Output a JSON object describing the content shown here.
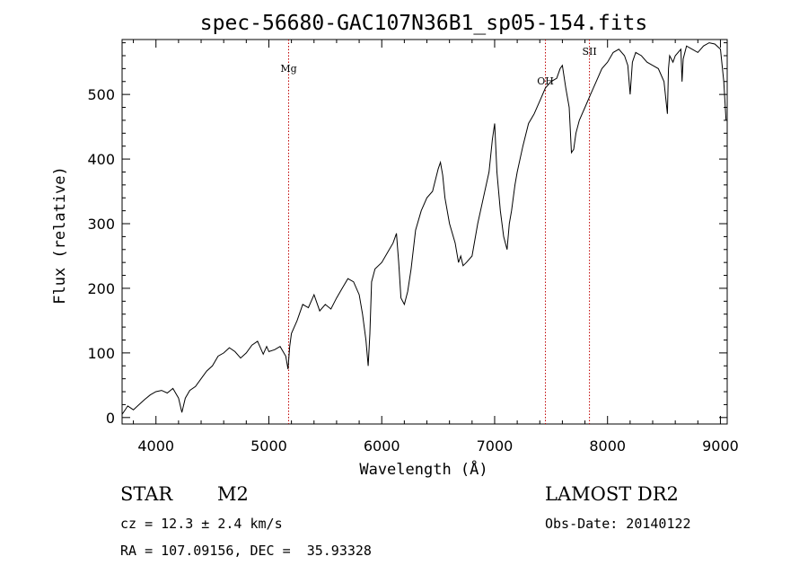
{
  "chart_data": {
    "type": "line",
    "title": "spec-56680-GAC107N36B1_sp05-154.fits",
    "xlabel": "Wavelength (Å)",
    "ylabel": "Flux (relative)",
    "xlim": [
      3700,
      9060
    ],
    "ylim": [
      -10,
      585
    ],
    "xticks": [
      4000,
      5000,
      6000,
      7000,
      8000,
      9000
    ],
    "yticks": [
      0,
      100,
      200,
      300,
      400,
      500
    ],
    "grid": false,
    "line_markers": [
      {
        "label": "Mg",
        "x": 5175
      },
      {
        "label": "OH",
        "x": 7450
      },
      {
        "label": "SII",
        "x": 7840
      }
    ],
    "series": [
      {
        "x": [
          3700,
          3720,
          3750,
          3800,
          3850,
          3900,
          3950,
          4000,
          4050,
          4100,
          4150,
          4200,
          4230,
          4260,
          4300,
          4350,
          4400,
          4450,
          4500,
          4550,
          4600,
          4650,
          4700,
          4750,
          4800,
          4850,
          4900,
          4950,
          4980,
          5000,
          5050,
          5100,
          5150,
          5170,
          5185,
          5200,
          5250,
          5300,
          5350,
          5400,
          5450,
          5500,
          5550,
          5600,
          5650,
          5700,
          5750,
          5800,
          5830,
          5860,
          5880,
          5895,
          5910,
          5940,
          6000,
          6050,
          6100,
          6130,
          6150,
          6170,
          6200,
          6230,
          6260,
          6300,
          6350,
          6400,
          6450,
          6500,
          6520,
          6540,
          6560,
          6600,
          6650,
          6680,
          6700,
          6720,
          6750,
          6800,
          6850,
          6900,
          6950,
          6980,
          7000,
          7020,
          7050,
          7080,
          7110,
          7130,
          7150,
          7180,
          7200,
          7250,
          7300,
          7350,
          7400,
          7450,
          7500,
          7550,
          7580,
          7600,
          7630,
          7660,
          7680,
          7700,
          7720,
          7750,
          7800,
          7850,
          7900,
          7950,
          8000,
          8050,
          8100,
          8150,
          8180,
          8200,
          8220,
          8250,
          8300,
          8350,
          8400,
          8450,
          8500,
          8530,
          8540,
          8550,
          8580,
          8600,
          8650,
          8660,
          8670,
          8700,
          8750,
          8800,
          8850,
          8900,
          8950,
          9000,
          9030,
          9050
        ],
        "values": [
          5,
          10,
          18,
          12,
          20,
          28,
          35,
          40,
          42,
          38,
          45,
          30,
          8,
          30,
          42,
          48,
          60,
          72,
          80,
          95,
          100,
          108,
          102,
          92,
          100,
          112,
          118,
          98,
          110,
          102,
          105,
          110,
          95,
          75,
          110,
          130,
          150,
          175,
          170,
          190,
          165,
          175,
          168,
          185,
          200,
          215,
          210,
          190,
          160,
          120,
          80,
          130,
          210,
          230,
          240,
          255,
          270,
          285,
          240,
          185,
          175,
          195,
          230,
          290,
          320,
          340,
          350,
          385,
          395,
          375,
          340,
          300,
          270,
          240,
          250,
          235,
          240,
          250,
          300,
          340,
          380,
          430,
          455,
          380,
          320,
          280,
          260,
          300,
          320,
          360,
          380,
          420,
          455,
          470,
          490,
          510,
          520,
          525,
          540,
          545,
          510,
          480,
          410,
          415,
          440,
          460,
          480,
          500,
          520,
          540,
          550,
          565,
          570,
          560,
          545,
          500,
          550,
          565,
          560,
          550,
          545,
          540,
          520,
          470,
          540,
          560,
          550,
          560,
          570,
          520,
          555,
          575,
          570,
          565,
          575,
          580,
          578,
          570,
          520,
          460
        ]
      }
    ]
  },
  "info": {
    "class_label": "STAR",
    "subclass": "M2",
    "survey": "LAMOST DR2",
    "redshift_line": "cz = 12.3 ± 2.4 km/s",
    "obs_date_line": "Obs-Date: 20140122",
    "coords_line": "RA = 107.09156, DEC =  35.93328"
  }
}
